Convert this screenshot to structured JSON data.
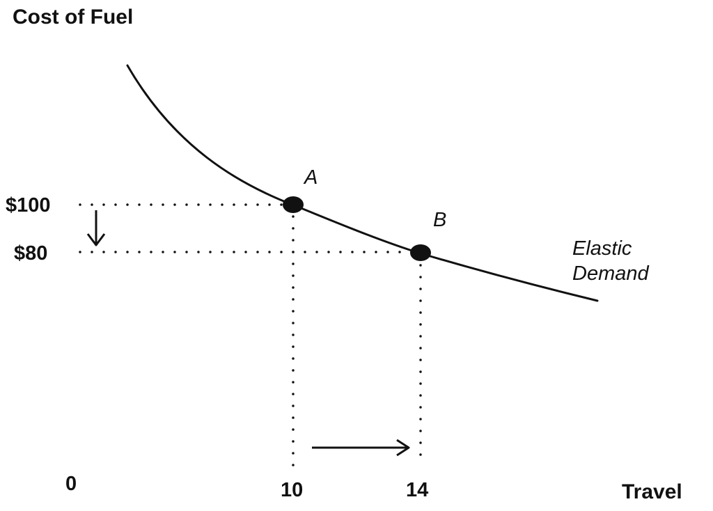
{
  "chart_data": {
    "type": "line",
    "title": "",
    "xlabel": "Travel",
    "ylabel": "Cost of Fuel",
    "origin_label": "0",
    "x_ticks": [
      "10",
      "14"
    ],
    "y_ticks": [
      "$100",
      "$80"
    ],
    "series": [
      {
        "name": "Elastic Demand",
        "curve": "downward-sloping demand curve"
      }
    ],
    "curve_label": [
      "Elastic",
      "Demand"
    ],
    "points": [
      {
        "label": "A",
        "x": 10,
        "y": 100
      },
      {
        "label": "B",
        "x": 14,
        "y": 80
      }
    ],
    "arrows": [
      {
        "meaning": "price decrease",
        "from": 100,
        "to": 80,
        "axis": "y"
      },
      {
        "meaning": "travel increase",
        "from": 10,
        "to": 14,
        "axis": "x"
      }
    ],
    "grid": false,
    "line_color": "#111111",
    "guide_color": "#111111"
  }
}
